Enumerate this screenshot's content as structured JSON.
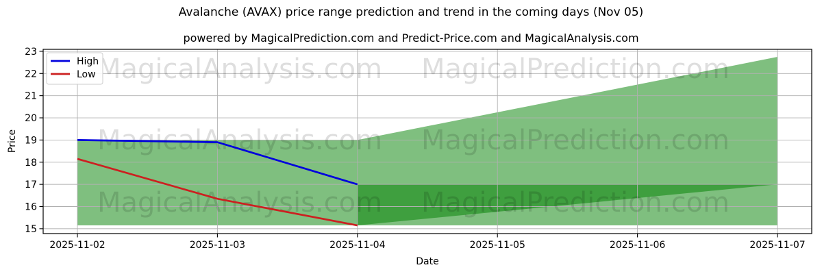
{
  "chart_data": {
    "type": "line",
    "title": "Avalanche (AVAX) price range prediction and trend in the coming days (Nov 05)",
    "subtitle": "powered by MagicalPrediction.com and Predict-Price.com and MagicalAnalysis.com",
    "xlabel": "Date",
    "ylabel": "Price",
    "x_categories": [
      "2025-11-02",
      "2025-11-03",
      "2025-11-04",
      "2025-11-05",
      "2025-11-06",
      "2025-11-07"
    ],
    "yticks": [
      15,
      16,
      17,
      18,
      19,
      20,
      21,
      22,
      23
    ],
    "ylim": [
      14.78,
      23.09
    ],
    "grid": true,
    "grid_color": "#b0b0b0",
    "legend": {
      "position": "upper-left",
      "entries": [
        {
          "label": "High",
          "color": "#0000dd"
        },
        {
          "label": "Low",
          "color": "#cc2020"
        }
      ]
    },
    "series": [
      {
        "name": "High",
        "color": "#0000dd",
        "dates": [
          "2025-11-02",
          "2025-11-03",
          "2025-11-04"
        ],
        "values": [
          19.0,
          18.9,
          17.0
        ]
      },
      {
        "name": "Low",
        "color": "#cc2020",
        "dates": [
          "2025-11-02",
          "2025-11-03",
          "2025-11-04"
        ],
        "values": [
          18.15,
          16.35,
          15.15
        ]
      }
    ],
    "bands": [
      {
        "name": "prediction-range",
        "fill": "#008000",
        "opacity": 0.5,
        "points": [
          [
            "2025-11-02",
            19.0
          ],
          [
            "2025-11-04",
            19.0
          ],
          [
            "2025-11-07",
            22.75
          ],
          [
            "2025-11-07",
            15.15
          ],
          [
            "2025-11-02",
            15.15
          ]
        ]
      },
      {
        "name": "prediction-overlap",
        "fill": "#008000",
        "opacity": 0.5,
        "points": [
          [
            "2025-11-04",
            17.0
          ],
          [
            "2025-11-07",
            17.0
          ],
          [
            "2025-11-04",
            15.15
          ]
        ]
      }
    ],
    "watermarks": {
      "labels": [
        "MagicalAnalysis.com",
        "MagicalPrediction.com"
      ],
      "color": "#000000",
      "opacity": 0.13
    }
  }
}
